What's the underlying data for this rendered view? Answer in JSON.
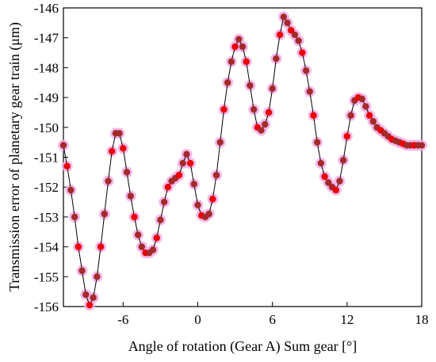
{
  "chart_data": {
    "type": "scatter",
    "title": "",
    "xlabel": "Angle of rotation (Gear A) Sum gear [°]",
    "ylabel": "Transmission error of planetary gear train (μm)",
    "xlim": [
      -10.8,
      18
    ],
    "ylim": [
      -156,
      -146
    ],
    "xticks": [
      -6,
      0,
      6,
      12,
      18
    ],
    "yticks": [
      -156,
      -155,
      -154,
      -153,
      -152,
      -151,
      -150,
      -149,
      -148,
      -147,
      -146
    ],
    "grid": false,
    "legend": "none",
    "line_color": "#000000",
    "marker_colors": [
      "#a52a2a",
      "#ee0000"
    ],
    "halo_color": "#f0b0e8",
    "series": [
      {
        "x": [
          -10.8,
          -10.5,
          -10.2,
          -9.9,
          -9.6,
          -9.3,
          -9.0,
          -8.7,
          -8.4,
          -8.1,
          -7.8,
          -7.5,
          -7.2,
          -6.9,
          -6.6,
          -6.3,
          -6.0,
          -5.7,
          -5.4,
          -5.1,
          -4.8,
          -4.5,
          -4.2,
          -3.9,
          -3.6,
          -3.3,
          -3.0,
          -2.7,
          -2.4,
          -2.1,
          -1.8,
          -1.5,
          -1.2,
          -0.9,
          -0.6,
          -0.3,
          0.0,
          0.3,
          0.6,
          0.9,
          1.2,
          1.5,
          1.8,
          2.1,
          2.4,
          2.7,
          3.0,
          3.3,
          3.6,
          3.9,
          4.2,
          4.5,
          4.8,
          5.1,
          5.4,
          5.7,
          6.0,
          6.3,
          6.6,
          6.9,
          7.2,
          7.5,
          7.8,
          8.1,
          8.4,
          8.7,
          9.0,
          9.3,
          9.6,
          9.9,
          10.2,
          10.5,
          10.8,
          11.1,
          11.4,
          11.7,
          12.0,
          12.3,
          12.6,
          12.9,
          13.2,
          13.5,
          13.8,
          14.1,
          14.4,
          14.7,
          15.0,
          15.3,
          15.6,
          15.9,
          16.2,
          16.5,
          16.8,
          17.1,
          17.4,
          17.7,
          18.0
        ],
        "y": [
          -150.6,
          -151.3,
          -152.1,
          -153.0,
          -154.0,
          -154.8,
          -155.6,
          -155.95,
          -155.7,
          -155.0,
          -154.0,
          -152.9,
          -151.8,
          -150.8,
          -150.2,
          -150.2,
          -150.7,
          -151.5,
          -152.3,
          -153.0,
          -153.6,
          -154.0,
          -154.2,
          -154.2,
          -154.1,
          -153.7,
          -153.1,
          -152.5,
          -152.0,
          -151.8,
          -151.7,
          -151.6,
          -151.2,
          -150.9,
          -151.2,
          -151.9,
          -152.6,
          -152.95,
          -153.0,
          -152.9,
          -152.4,
          -151.6,
          -150.5,
          -149.4,
          -148.5,
          -147.8,
          -147.3,
          -147.05,
          -147.3,
          -147.8,
          -148.6,
          -149.4,
          -150.0,
          -150.1,
          -149.9,
          -149.5,
          -148.7,
          -147.7,
          -146.9,
          -146.3,
          -146.5,
          -146.75,
          -146.9,
          -147.1,
          -147.5,
          -148.1,
          -148.8,
          -149.6,
          -150.5,
          -151.2,
          -151.65,
          -151.85,
          -152.0,
          -152.1,
          -151.8,
          -151.1,
          -150.3,
          -149.6,
          -149.1,
          -149.0,
          -149.05,
          -149.3,
          -149.6,
          -149.8,
          -150.0,
          -150.1,
          -150.2,
          -150.3,
          -150.4,
          -150.45,
          -150.5,
          -150.55,
          -150.6,
          -150.6,
          -150.6,
          -150.6,
          -150.6
        ]
      }
    ]
  }
}
